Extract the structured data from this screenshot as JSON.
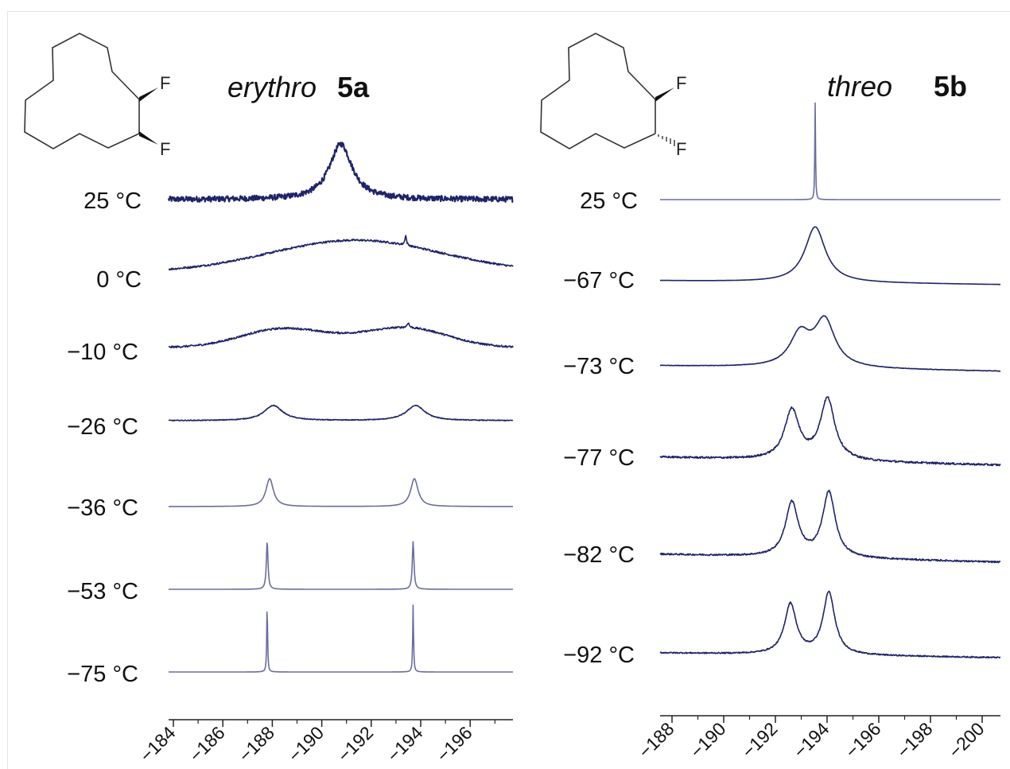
{
  "colors": {
    "trace": "#1f2468",
    "trace_light": "#6a6e9e",
    "axis": "#222222",
    "structure": "#333333"
  },
  "chart_data": [
    {
      "type": "line",
      "panel": "left",
      "title_italic": "erythro",
      "title_bold": "5a",
      "x_ticks": [
        "−184",
        "−186",
        "−188",
        "−190",
        "−192",
        "−194",
        "−196"
      ],
      "xlim": [
        -183.8,
        -197.6
      ],
      "series": [
        {
          "name": "25 °C",
          "baseline": [
            [
              -183.8,
              0
            ],
            [
              -197.6,
              0
            ]
          ],
          "peaks": [
            {
              "x": -190.7,
              "h": 70,
              "w": 0.55
            }
          ],
          "noise": 3.5,
          "light": false
        },
        {
          "name": "0 °C",
          "baseline": [
            [
              -183.8,
              0
            ],
            [
              -197.6,
              0
            ]
          ],
          "peaks": [
            {
              "x": -191.3,
              "h": 40,
              "w": 3.4,
              "shape": "gauss"
            },
            {
              "x": -193.3,
              "h": 12,
              "w": 0.04
            }
          ],
          "noise": 1.2,
          "light": false
        },
        {
          "name": "−10 °C",
          "baseline": [
            [
              -183.8,
              0
            ],
            [
              -197.6,
              0
            ]
          ],
          "peaks": [
            {
              "x": -188.2,
              "h": 20,
              "w": 1.6,
              "shape": "gauss"
            },
            {
              "x": -193.5,
              "h": 21,
              "w": 1.6,
              "shape": "gauss"
            },
            {
              "x": -193.4,
              "h": 6,
              "w": 0.05
            },
            {
              "x": -190.85,
              "h": 8,
              "w": 2.2,
              "shape": "gauss"
            }
          ],
          "noise": 1.2,
          "light": false
        },
        {
          "name": "−26 °C",
          "baseline": [
            [
              -183.8,
              0
            ],
            [
              -197.6,
              0
            ]
          ],
          "peaks": [
            {
              "x": -188.0,
              "h": 19,
              "w": 0.45
            },
            {
              "x": -193.7,
              "h": 19,
              "w": 0.45
            }
          ],
          "noise": 0.5,
          "light": false
        },
        {
          "name": "−36 °C",
          "baseline": [
            [
              -183.8,
              0
            ],
            [
              -197.6,
              0
            ]
          ],
          "peaks": [
            {
              "x": -187.85,
              "h": 35,
              "w": 0.18
            },
            {
              "x": -193.65,
              "h": 35,
              "w": 0.18
            }
          ],
          "noise": 0,
          "light": true
        },
        {
          "name": "−53 °C",
          "baseline": [
            [
              -183.8,
              0
            ],
            [
              -197.6,
              0
            ]
          ],
          "peaks": [
            {
              "x": -187.75,
              "h": 60,
              "w": 0.04
            },
            {
              "x": -193.6,
              "h": 60,
              "w": 0.04
            }
          ],
          "noise": 0,
          "light": true
        },
        {
          "name": "−75 °C",
          "baseline": [
            [
              -183.8,
              0
            ],
            [
              -197.6,
              0
            ]
          ],
          "peaks": [
            {
              "x": -187.75,
              "h": 85,
              "w": 0.02
            },
            {
              "x": -193.6,
              "h": 85,
              "w": 0.02
            }
          ],
          "noise": 0,
          "light": true
        }
      ]
    },
    {
      "type": "line",
      "panel": "right",
      "title_italic": "threo",
      "title_bold": "5b",
      "x_ticks": [
        "−188",
        "−190",
        "−192",
        "−194",
        "−196",
        "−198",
        "−200"
      ],
      "xlim": [
        -187.9,
        -200.3
      ],
      "series": [
        {
          "name": "25 °C",
          "baseline": [
            [
              -187.9,
              0
            ],
            [
              -200.3,
              0
            ]
          ],
          "peaks": [
            {
              "x": -193.55,
              "h": 122,
              "w": 0.015
            }
          ],
          "noise": 0,
          "light": true
        },
        {
          "name": "−67 °C",
          "baseline": [
            [
              -187.9,
              0
            ],
            [
              -200.3,
              -5
            ]
          ],
          "peaks": [
            {
              "x": -193.55,
              "h": 70,
              "w": 0.45
            }
          ],
          "noise": 0,
          "light": false
        },
        {
          "name": "−73 °C",
          "baseline": [
            [
              -187.9,
              0
            ],
            [
              -200.3,
              -7
            ]
          ],
          "peaks": [
            {
              "x": -193.0,
              "h": 40,
              "w": 0.45
            },
            {
              "x": -193.9,
              "h": 58,
              "w": 0.45
            }
          ],
          "noise": 0.3,
          "light": false
        },
        {
          "name": "−77 °C",
          "baseline": [
            [
              -187.9,
              0
            ],
            [
              -200.3,
              -10
            ]
          ],
          "peaks": [
            {
              "x": -192.7,
              "h": 62,
              "w": 0.32
            },
            {
              "x": -194.0,
              "h": 77,
              "w": 0.32
            }
          ],
          "noise": 1.2,
          "light": false
        },
        {
          "name": "−82 °C",
          "baseline": [
            [
              -187.9,
              0
            ],
            [
              -200.3,
              -10
            ]
          ],
          "peaks": [
            {
              "x": -192.7,
              "h": 68,
              "w": 0.28
            },
            {
              "x": -194.05,
              "h": 82,
              "w": 0.28
            }
          ],
          "noise": 1.0,
          "light": false
        },
        {
          "name": "−92 °C",
          "baseline": [
            [
              -187.9,
              0
            ],
            [
              -200.3,
              -6
            ]
          ],
          "peaks": [
            {
              "x": -192.65,
              "h": 63,
              "w": 0.26
            },
            {
              "x": -194.05,
              "h": 78,
              "w": 0.26
            }
          ],
          "noise": 0.8,
          "light": false
        }
      ]
    }
  ],
  "structures": [
    {
      "panel": "left",
      "f_top": "F",
      "f_bottom": "F",
      "bottom_bond": "wedge"
    },
    {
      "panel": "right",
      "f_top": "F",
      "f_bottom": "F",
      "bottom_bond": "hash"
    }
  ]
}
